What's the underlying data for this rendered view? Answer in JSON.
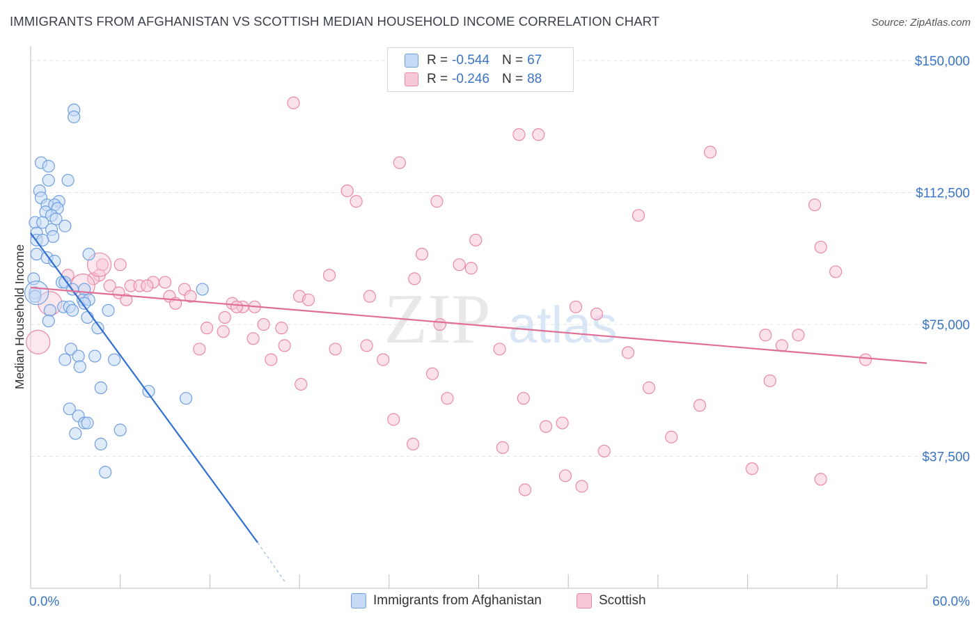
{
  "title": "IMMIGRANTS FROM AFGHANISTAN VS SCOTTISH MEDIAN HOUSEHOLD INCOME CORRELATION CHART",
  "source": "Source: ZipAtlas.com",
  "watermark": {
    "zip": "ZIP",
    "atlas": "atlas"
  },
  "colors": {
    "blue": "#6f9fe0",
    "blue_fill": "#c7daf5",
    "blue_line": "#2f6fd1",
    "pink": "#ea89a7",
    "pink_fill": "#f7c9d7",
    "pink_line": "#e06f95",
    "axis_label": "#3a74c4",
    "grid": "#e3e3e3"
  },
  "legend": {
    "rows": [
      {
        "r_label": "R =",
        "r_value": "-0.544",
        "n_label": "N =",
        "n_value": "67",
        "color": "#c7daf5",
        "border": "#6f9fe0"
      },
      {
        "r_label": "R =",
        "r_value": "-0.246",
        "n_label": "N =",
        "n_value": "88",
        "color": "#f7c9d7",
        "border": "#ea89a7"
      }
    ]
  },
  "bottom_legend": [
    {
      "label": "Immigrants from Afghanistan",
      "color": "#c7daf5",
      "border": "#6f9fe0"
    },
    {
      "label": "Scottish",
      "color": "#f7c9d7",
      "border": "#ea89a7"
    }
  ],
  "chart_data": {
    "type": "scatter",
    "title": "IMMIGRANTS FROM AFGHANISTAN VS SCOTTISH MEDIAN HOUSEHOLD INCOME CORRELATION CHART",
    "xlabel": "",
    "ylabel": "Median Household Income",
    "xlim": [
      0,
      60
    ],
    "ylim": [
      0,
      153000
    ],
    "x_tick_labels": [
      {
        "value": 0,
        "label": "0.0%"
      },
      {
        "value": 60,
        "label": "60.0%"
      }
    ],
    "y_ticks": [
      {
        "value": 150000,
        "label": "$150,000"
      },
      {
        "value": 112500,
        "label": "$112,500"
      },
      {
        "value": 75000,
        "label": "$75,000"
      },
      {
        "value": 37500,
        "label": "$37,500"
      }
    ],
    "series": [
      {
        "name": "Immigrants from Afghanistan",
        "r": -0.544,
        "n": 67,
        "trend": {
          "x0": 0,
          "y0": 101000,
          "x1": 15.2,
          "y1": 13000,
          "dash_to_x": 17.0,
          "dash_to_y": 2000
        },
        "points": [
          [
            2.9,
            136000
          ],
          [
            2.9,
            134000
          ],
          [
            0.7,
            121000
          ],
          [
            1.2,
            120000
          ],
          [
            1.2,
            116000
          ],
          [
            2.5,
            116000
          ],
          [
            0.6,
            113000
          ],
          [
            0.7,
            111000
          ],
          [
            1.9,
            110000
          ],
          [
            1.1,
            109000
          ],
          [
            1.6,
            109000
          ],
          [
            1.8,
            108000
          ],
          [
            1.0,
            107000
          ],
          [
            1.4,
            106000
          ],
          [
            1.7,
            105000
          ],
          [
            0.3,
            104000
          ],
          [
            0.8,
            104000
          ],
          [
            2.3,
            103000
          ],
          [
            1.4,
            102000
          ],
          [
            0.4,
            101000
          ],
          [
            1.5,
            100000
          ],
          [
            0.4,
            99000
          ],
          [
            0.8,
            99000
          ],
          [
            3.9,
            95000
          ],
          [
            0.4,
            95000
          ],
          [
            1.1,
            94000
          ],
          [
            1.6,
            93000
          ],
          [
            0.2,
            88000
          ],
          [
            2.1,
            87000
          ],
          [
            2.3,
            87000
          ],
          [
            2.8,
            85000
          ],
          [
            3.6,
            85000
          ],
          [
            11.5,
            85000
          ],
          [
            0.3,
            84000
          ],
          [
            0.3,
            83000
          ],
          [
            3.5,
            82000
          ],
          [
            3.9,
            82000
          ],
          [
            3.6,
            81000
          ],
          [
            2.2,
            80000
          ],
          [
            1.3,
            79000
          ],
          [
            2.6,
            80000
          ],
          [
            2.8,
            79000
          ],
          [
            5.2,
            79000
          ],
          [
            1.2,
            76000
          ],
          [
            3.8,
            77000
          ],
          [
            4.5,
            74000
          ],
          [
            2.7,
            68000
          ],
          [
            3.2,
            66000
          ],
          [
            4.3,
            66000
          ],
          [
            2.3,
            65000
          ],
          [
            5.6,
            65000
          ],
          [
            3.3,
            63000
          ],
          [
            4.7,
            57000
          ],
          [
            7.9,
            56000
          ],
          [
            10.4,
            54000
          ],
          [
            2.6,
            51000
          ],
          [
            3.2,
            49000
          ],
          [
            3.6,
            47000
          ],
          [
            3.8,
            47000
          ],
          [
            6.0,
            45000
          ],
          [
            3.0,
            44000
          ],
          [
            4.7,
            41000
          ],
          [
            5.0,
            33000
          ]
        ],
        "big_points": [
          [
            0.4,
            84000
          ]
        ]
      },
      {
        "name": "Scottish",
        "r": -0.246,
        "n": 88,
        "trend": {
          "x0": 0,
          "y0": 85500,
          "x1": 60,
          "y1": 64000
        },
        "points": [
          [
            17.6,
            138000
          ],
          [
            32.7,
            129000
          ],
          [
            34.0,
            129000
          ],
          [
            45.5,
            124000
          ],
          [
            24.7,
            121000
          ],
          [
            21.2,
            113000
          ],
          [
            21.8,
            110000
          ],
          [
            27.2,
            110000
          ],
          [
            52.5,
            109000
          ],
          [
            40.7,
            106000
          ],
          [
            29.8,
            99000
          ],
          [
            52.9,
            97000
          ],
          [
            26.2,
            95000
          ],
          [
            28.7,
            92000
          ],
          [
            29.5,
            91000
          ],
          [
            4.8,
            92000
          ],
          [
            6.0,
            92000
          ],
          [
            2.5,
            89000
          ],
          [
            4.6,
            89000
          ],
          [
            4.2,
            88000
          ],
          [
            8.2,
            87000
          ],
          [
            9.0,
            87000
          ],
          [
            53.9,
            90000
          ],
          [
            20.0,
            89000
          ],
          [
            25.7,
            88000
          ],
          [
            5.3,
            86000
          ],
          [
            6.7,
            86000
          ],
          [
            7.3,
            86000
          ],
          [
            7.8,
            86000
          ],
          [
            10.3,
            85000
          ],
          [
            5.9,
            84000
          ],
          [
            9.3,
            83000
          ],
          [
            10.7,
            83000
          ],
          [
            22.7,
            83000
          ],
          [
            18.0,
            83000
          ],
          [
            6.4,
            82000
          ],
          [
            18.6,
            82000
          ],
          [
            13.5,
            81000
          ],
          [
            9.7,
            81000
          ],
          [
            14.2,
            80000
          ],
          [
            13.8,
            80000
          ],
          [
            15.0,
            80000
          ],
          [
            36.5,
            80000
          ],
          [
            37.9,
            78000
          ],
          [
            13.0,
            77000
          ],
          [
            15.6,
            75000
          ],
          [
            16.8,
            74000
          ],
          [
            11.8,
            74000
          ],
          [
            12.9,
            73000
          ],
          [
            27.4,
            75000
          ],
          [
            49.2,
            72000
          ],
          [
            51.4,
            72000
          ],
          [
            14.9,
            71000
          ],
          [
            22.5,
            69000
          ],
          [
            17.0,
            69000
          ],
          [
            50.3,
            69000
          ],
          [
            11.3,
            68000
          ],
          [
            20.4,
            68000
          ],
          [
            31.4,
            68000
          ],
          [
            40.0,
            67000
          ],
          [
            16.1,
            65000
          ],
          [
            23.6,
            65000
          ],
          [
            55.9,
            65000
          ],
          [
            26.9,
            61000
          ],
          [
            18.1,
            58000
          ],
          [
            49.5,
            59000
          ],
          [
            41.4,
            57000
          ],
          [
            27.9,
            54000
          ],
          [
            33.0,
            54000
          ],
          [
            44.8,
            52000
          ],
          [
            24.3,
            48000
          ],
          [
            34.5,
            46000
          ],
          [
            35.6,
            47000
          ],
          [
            25.6,
            41000
          ],
          [
            31.6,
            40000
          ],
          [
            42.9,
            43000
          ],
          [
            38.4,
            39000
          ],
          [
            48.3,
            34000
          ],
          [
            35.8,
            32000
          ],
          [
            52.9,
            31000
          ],
          [
            36.9,
            29000
          ],
          [
            33.1,
            28000
          ]
        ],
        "big_points": [
          [
            1.3,
            81000
          ],
          [
            0.5,
            70000
          ],
          [
            3.5,
            86000
          ],
          [
            4.6,
            92000
          ]
        ]
      }
    ]
  }
}
